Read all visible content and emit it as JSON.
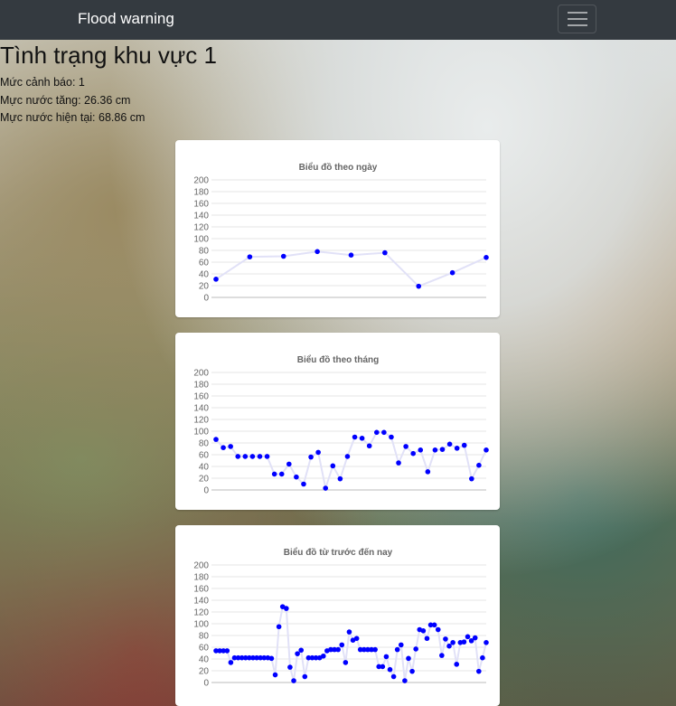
{
  "navbar": {
    "brand": "Flood warning",
    "menu_icon": "hamburger-menu-icon"
  },
  "area": {
    "title": "Tình trạng khu vực 1",
    "warning_level_label": "Mức cảnh báo:",
    "warning_level_value": "1",
    "rise_label": "Mực nước tăng:",
    "rise_value": "26.36 cm",
    "current_label": "Mực nước hiện tại:",
    "current_value": "68.86 cm"
  },
  "chart_data": [
    {
      "type": "line",
      "title": "Biểu đồ theo ngày",
      "ylim": [
        0,
        200
      ],
      "yticks": [
        0,
        20,
        40,
        60,
        80,
        100,
        120,
        140,
        160,
        180,
        200
      ],
      "grid": true,
      "color": "#0000ff",
      "line_color": "#e1e1f7",
      "values": [
        31,
        69,
        70,
        78,
        72,
        76,
        19,
        42,
        68
      ]
    },
    {
      "type": "line",
      "title": "Biểu đồ theo tháng",
      "ylim": [
        0,
        200
      ],
      "yticks": [
        0,
        20,
        40,
        60,
        80,
        100,
        120,
        140,
        160,
        180,
        200
      ],
      "grid": true,
      "color": "#0000ff",
      "line_color": "#e1e1f7",
      "values": [
        86,
        72,
        74,
        57,
        57,
        57,
        57,
        57,
        27,
        27,
        44,
        22,
        10,
        56,
        64,
        3,
        41,
        19,
        57,
        90,
        88,
        75,
        98,
        98,
        90,
        46,
        74,
        62,
        68,
        31,
        68,
        69,
        78,
        71,
        76,
        19,
        42,
        68
      ]
    },
    {
      "type": "line",
      "title": "Biểu đồ từ trước đến nay",
      "ylim": [
        0,
        200
      ],
      "yticks": [
        0,
        20,
        40,
        60,
        80,
        100,
        120,
        140,
        160,
        180,
        200
      ],
      "grid": true,
      "color": "#0000ff",
      "line_color": "#e1e1f7",
      "values": [
        54,
        54,
        54,
        54,
        34,
        42,
        42,
        42,
        42,
        42,
        42,
        42,
        42,
        42,
        42,
        41,
        13,
        95,
        129,
        126,
        26,
        3,
        49,
        55,
        10,
        42,
        42,
        42,
        42,
        45,
        54,
        56,
        56,
        56,
        64,
        34,
        86,
        72,
        75,
        56,
        56,
        56,
        56,
        56,
        27,
        27,
        44,
        22,
        10,
        56,
        64,
        3,
        41,
        19,
        57,
        90,
        88,
        75,
        98,
        98,
        90,
        46,
        74,
        62,
        68,
        31,
        68,
        69,
        78,
        71,
        76,
        19,
        42,
        68
      ]
    }
  ]
}
